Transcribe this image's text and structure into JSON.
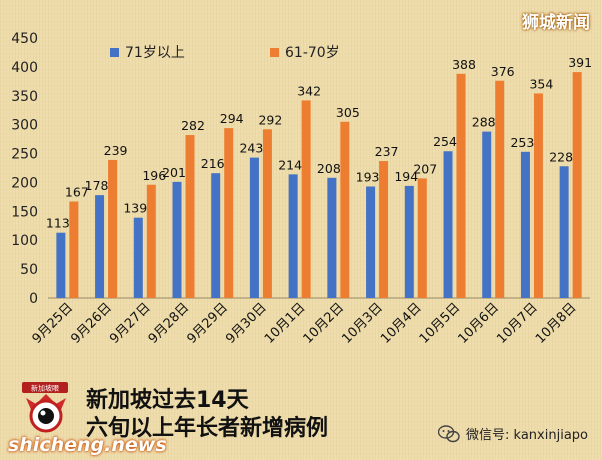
{
  "brand": "狮城新闻",
  "caption": {
    "line1": "新加坡过去14天",
    "line2": "六旬以上年长者新增病例"
  },
  "site": "shicheng.news",
  "wechat": "微信号: kanxinjiapo",
  "logo_text": "新加坡眼",
  "colors": {
    "series1": "#4472c4",
    "series2": "#ed7d31",
    "background": "#eedcaa"
  },
  "chart_data": {
    "type": "bar",
    "categories": [
      "9月25日",
      "9月26日",
      "9月27日",
      "9月28日",
      "9月29日",
      "9月30日",
      "10月1日",
      "10月2日",
      "10月3日",
      "10月4日",
      "10月5日",
      "10月6日",
      "10月7日",
      "10月8日"
    ],
    "series": [
      {
        "name": "71岁以上",
        "values": [
          113,
          178,
          139,
          201,
          216,
          243,
          214,
          208,
          193,
          194,
          254,
          288,
          253,
          228
        ]
      },
      {
        "name": "61-70岁",
        "values": [
          167,
          239,
          196,
          282,
          294,
          292,
          342,
          305,
          237,
          207,
          388,
          376,
          354,
          391
        ]
      }
    ],
    "ylim": [
      0,
      450
    ],
    "yticks": [
      0,
      50,
      100,
      150,
      200,
      250,
      300,
      350,
      400,
      450
    ],
    "legend_position": "top-left",
    "data_labels": true
  }
}
